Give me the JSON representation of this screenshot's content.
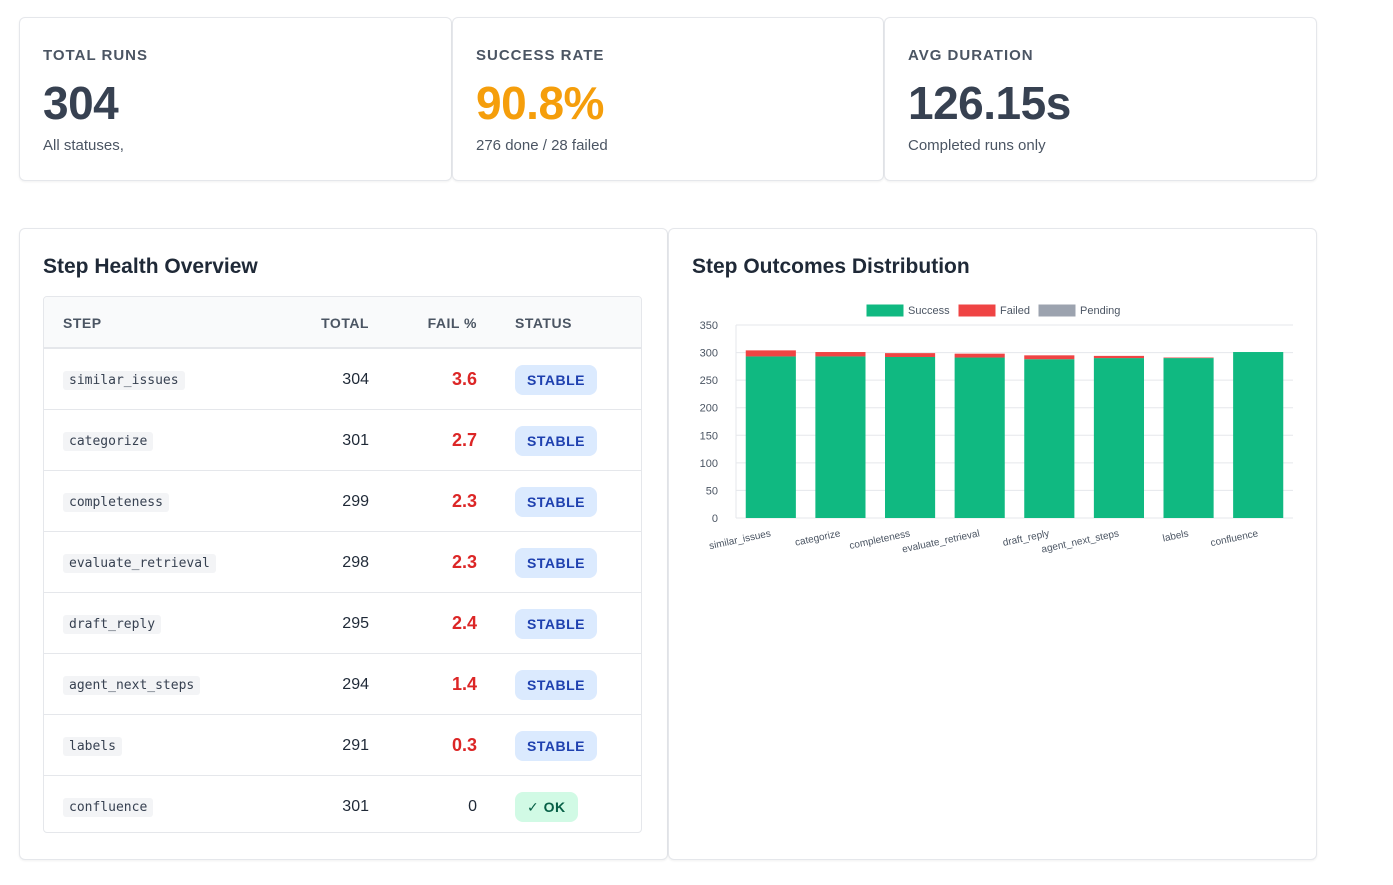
{
  "stats": [
    {
      "label": "TOTAL RUNS",
      "value": "304",
      "sub": "All statuses,",
      "color": "#374151"
    },
    {
      "label": "SUCCESS RATE",
      "value": "90.8%",
      "sub": "276 done / 28 failed",
      "color": "#f59e0b"
    },
    {
      "label": "AVG DURATION",
      "value": "126.15s",
      "sub": "Completed runs only",
      "color": "#374151"
    }
  ],
  "health": {
    "title": "Step Health Overview",
    "headers": {
      "step": "STEP",
      "total": "TOTAL",
      "fail": "FAIL %",
      "status": "STATUS"
    },
    "rows": [
      {
        "step": "similar_issues",
        "total": "304",
        "fail": "3.6",
        "status": "STABLE"
      },
      {
        "step": "categorize",
        "total": "301",
        "fail": "2.7",
        "status": "STABLE"
      },
      {
        "step": "completeness",
        "total": "299",
        "fail": "2.3",
        "status": "STABLE"
      },
      {
        "step": "evaluate_retrieval",
        "total": "298",
        "fail": "2.3",
        "status": "STABLE"
      },
      {
        "step": "draft_reply",
        "total": "295",
        "fail": "2.4",
        "status": "STABLE"
      },
      {
        "step": "agent_next_steps",
        "total": "294",
        "fail": "1.4",
        "status": "STABLE"
      },
      {
        "step": "labels",
        "total": "291",
        "fail": "0.3",
        "status": "STABLE"
      },
      {
        "step": "confluence",
        "total": "301",
        "fail": "0",
        "status": "✓ OK"
      }
    ]
  },
  "outcomes": {
    "title": "Step Outcomes Distribution"
  },
  "chart_data": {
    "type": "bar",
    "stacked": true,
    "categories": [
      "similar_issues",
      "categorize",
      "completeness",
      "evaluate_retrieval",
      "draft_reply",
      "agent_next_steps",
      "labels",
      "confluence"
    ],
    "series": [
      {
        "name": "Success",
        "color": "#10b981",
        "values": [
          293,
          293,
          292,
          291,
          288,
          290,
          290,
          301
        ]
      },
      {
        "name": "Failed",
        "color": "#ef4444",
        "values": [
          11,
          8,
          7,
          7,
          7,
          4,
          1,
          0
        ]
      },
      {
        "name": "Pending",
        "color": "#9ca3af",
        "values": [
          0,
          0,
          0,
          0,
          0,
          0,
          0,
          0
        ]
      }
    ],
    "ylim": [
      0,
      350
    ],
    "yticks": [
      "0",
      "50",
      "100",
      "150",
      "200",
      "250",
      "300",
      "350"
    ],
    "grid": true,
    "legend": "top"
  }
}
